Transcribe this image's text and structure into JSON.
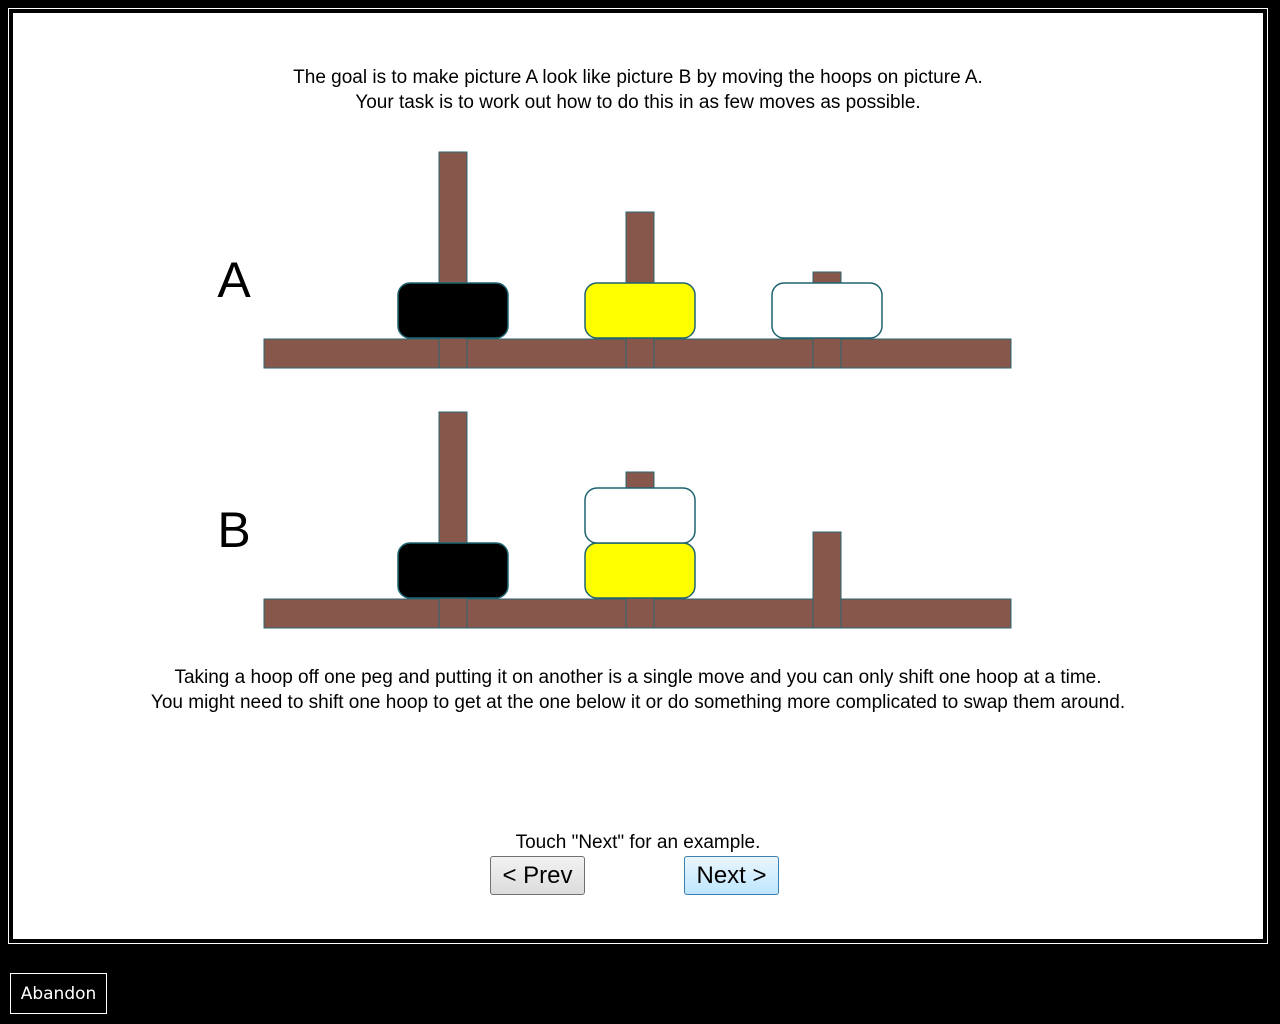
{
  "instructions": {
    "goal_line1": "The goal is to make picture A look like picture B by moving the hoops on picture A.",
    "goal_line2": "Your task is to work out how to do this in as few moves as possible.",
    "rules_line1": "Taking a hoop off one peg and putting it on another is a single move and you can only shift one hoop at a time.",
    "rules_line2": "You might need to shift one hoop to get at the one below it or do something more complicated to swap them around.",
    "prompt": "Touch \"Next\" for an example."
  },
  "colors": {
    "wood": "#86574a",
    "wood_edge": "#2d6670",
    "hoop_edge": "#1e6470",
    "black_hoop": "#000000",
    "yellow_hoop": "#ffff00",
    "white_hoop": "#ffffff"
  },
  "puzzles": [
    {
      "label": "A",
      "pegs": [
        {
          "capacity": 3,
          "hoops": [
            "black"
          ]
        },
        {
          "capacity": 2,
          "hoops": [
            "yellow"
          ]
        },
        {
          "capacity": 1,
          "hoops": [
            "white"
          ]
        }
      ]
    },
    {
      "label": "B",
      "pegs": [
        {
          "capacity": 3,
          "hoops": [
            "black"
          ]
        },
        {
          "capacity": 2,
          "hoops": [
            "yellow",
            "white"
          ]
        },
        {
          "capacity": 1,
          "hoops": []
        }
      ]
    }
  ],
  "buttons": {
    "prev": "< Prev",
    "next": "Next >",
    "abandon": "Abandon"
  }
}
